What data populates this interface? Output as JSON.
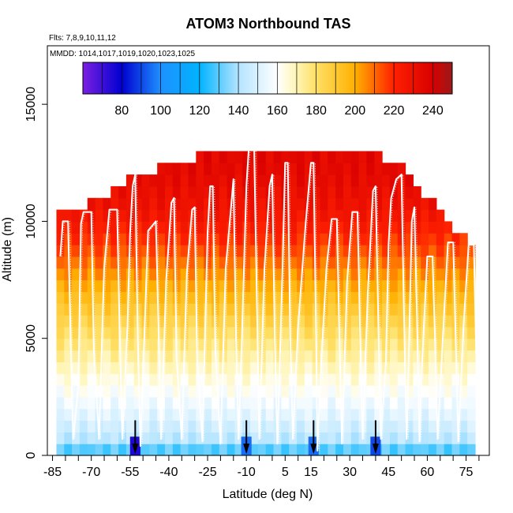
{
  "chart_data": {
    "type": "heatmap",
    "title": "ATOM3 Northbound TAS",
    "subtitle_flights": "Flts: 7,8,9,10,11,12",
    "subtitle_dates": "MMDD: 1014,1017,1019,1020,1023,1025",
    "xlabel": "Latitude (deg N)",
    "ylabel": "Altitude (m)",
    "xlim": [
      -87,
      84
    ],
    "ylim": [
      0,
      17500
    ],
    "x_ticks": [
      -85,
      -70,
      -55,
      -40,
      -25,
      -10,
      5,
      15,
      30,
      45,
      60,
      75
    ],
    "y_ticks": [
      0,
      5000,
      10000,
      15000
    ],
    "colorbar": {
      "range": [
        60,
        250
      ],
      "ticks": [
        80,
        100,
        120,
        140,
        160,
        180,
        200,
        220,
        240
      ],
      "stops": [
        {
          "v": 60,
          "c": "#7b1fe0"
        },
        {
          "v": 80,
          "c": "#0000d0"
        },
        {
          "v": 100,
          "c": "#1e90ff"
        },
        {
          "v": 120,
          "c": "#00b4ff"
        },
        {
          "v": 140,
          "c": "#b4e4ff"
        },
        {
          "v": 160,
          "c": "#ffffff"
        },
        {
          "v": 170,
          "c": "#fff5b4"
        },
        {
          "v": 180,
          "c": "#ffe066"
        },
        {
          "v": 200,
          "c": "#ffb000"
        },
        {
          "v": 220,
          "c": "#ff2000"
        },
        {
          "v": 240,
          "c": "#d80000"
        },
        {
          "v": 250,
          "c": "#9a1a1a"
        }
      ]
    },
    "lat_bins": [
      -82,
      -79,
      -76,
      -73,
      -70,
      -67,
      -64,
      -61,
      -58,
      -55,
      -52,
      -49,
      -46,
      -43,
      -40,
      -37,
      -34,
      -31,
      -28,
      -25,
      -22,
      -19,
      -16,
      -13,
      -10,
      -7,
      -4,
      -1,
      2,
      5,
      8,
      11,
      14,
      17,
      20,
      23,
      26,
      29,
      32,
      35,
      38,
      41,
      44,
      47,
      50,
      53,
      56,
      59,
      62,
      65,
      68,
      71,
      74,
      77
    ],
    "column_top_altitude_m": [
      10500,
      10500,
      10500,
      10500,
      11000,
      11000,
      11000,
      11500,
      11500,
      12000,
      12000,
      12000,
      12000,
      12500,
      12500,
      12500,
      12500,
      12500,
      13000,
      13000,
      13000,
      13000,
      13000,
      13000,
      13000,
      13000,
      13000,
      13000,
      13000,
      13000,
      13000,
      13000,
      13000,
      13000,
      13000,
      13000,
      13000,
      13000,
      13000,
      13000,
      13000,
      13000,
      12500,
      12500,
      12500,
      12000,
      11500,
      11000,
      11000,
      10500,
      10000,
      9500,
      9500,
      9000
    ],
    "tas_profile_by_altitude": [
      {
        "alt_m": 0,
        "tas": 120
      },
      {
        "alt_m": 500,
        "tas": 140
      },
      {
        "alt_m": 1500,
        "tas": 150
      },
      {
        "alt_m": 3000,
        "tas": 162
      },
      {
        "alt_m": 4500,
        "tas": 175
      },
      {
        "alt_m": 6000,
        "tas": 188
      },
      {
        "alt_m": 7500,
        "tas": 202
      },
      {
        "alt_m": 9000,
        "tas": 216
      },
      {
        "alt_m": 10500,
        "tas": 228
      },
      {
        "alt_m": 12000,
        "tas": 234
      },
      {
        "alt_m": 13500,
        "tas": 236
      }
    ],
    "low_speed_spots": [
      {
        "lat": -53,
        "alt_m": 300,
        "tas": 75
      },
      {
        "lat": -10,
        "alt_m": 300,
        "tas": 95
      },
      {
        "lat": 16,
        "alt_m": 300,
        "tas": 95
      },
      {
        "lat": 40,
        "alt_m": 300,
        "tas": 90
      }
    ],
    "flight_track": [
      [
        -82,
        8500
      ],
      [
        -81,
        10000
      ],
      [
        -79,
        10000
      ],
      [
        -78,
        5000
      ],
      [
        -77,
        700
      ],
      [
        -75,
        3000
      ],
      [
        -74,
        9900
      ],
      [
        -73,
        10400
      ],
      [
        -70,
        10400
      ],
      [
        -69,
        4500
      ],
      [
        -67,
        700
      ],
      [
        -65,
        8000
      ],
      [
        -63,
        10500
      ],
      [
        -60,
        10500
      ],
      [
        -59,
        5200
      ],
      [
        -58,
        700
      ],
      [
        -56,
        5500
      ],
      [
        -55,
        9500
      ],
      [
        -54,
        11500
      ],
      [
        -53,
        12000
      ],
      [
        -52,
        5000
      ],
      [
        -51,
        400
      ],
      [
        -50,
        3500
      ],
      [
        -48,
        9600
      ],
      [
        -45,
        10000
      ],
      [
        -44,
        5500
      ],
      [
        -43,
        700
      ],
      [
        -41,
        7500
      ],
      [
        -39,
        10800
      ],
      [
        -38,
        11000
      ],
      [
        -37,
        4200
      ],
      [
        -35,
        700
      ],
      [
        -33,
        7800
      ],
      [
        -31,
        10500
      ],
      [
        -30,
        10600
      ],
      [
        -29,
        4000
      ],
      [
        -27,
        600
      ],
      [
        -25,
        9500
      ],
      [
        -24,
        11500
      ],
      [
        -23,
        11500
      ],
      [
        -22,
        4500
      ],
      [
        -20,
        500
      ],
      [
        -18,
        8000
      ],
      [
        -16,
        10500
      ],
      [
        -15,
        11800
      ],
      [
        -14,
        5000
      ],
      [
        -13,
        700
      ],
      [
        -12,
        4000
      ],
      [
        -10,
        11500
      ],
      [
        -9,
        13200
      ],
      [
        -7,
        13200
      ],
      [
        -6,
        7000
      ],
      [
        -5,
        700
      ],
      [
        -3,
        8000
      ],
      [
        -1,
        11500
      ],
      [
        0,
        12000
      ],
      [
        1,
        5000
      ],
      [
        2,
        500
      ],
      [
        4,
        8000
      ],
      [
        5,
        12500
      ],
      [
        6,
        12500
      ],
      [
        7,
        5000
      ],
      [
        8,
        700
      ],
      [
        10,
        5500
      ],
      [
        13,
        10000
      ],
      [
        15,
        12500
      ],
      [
        16,
        12500
      ],
      [
        17,
        5000
      ],
      [
        17.5,
        200
      ],
      [
        19,
        4000
      ],
      [
        21,
        8000
      ],
      [
        23,
        10100
      ],
      [
        25,
        10100
      ],
      [
        26,
        5000
      ],
      [
        27,
        500
      ],
      [
        29,
        7500
      ],
      [
        31,
        10400
      ],
      [
        33,
        10400
      ],
      [
        34,
        5200
      ],
      [
        35,
        700
      ],
      [
        37,
        7000
      ],
      [
        39,
        11300
      ],
      [
        40,
        11500
      ],
      [
        41,
        6000
      ],
      [
        42,
        700
      ],
      [
        44,
        4000
      ],
      [
        45,
        9000
      ],
      [
        46,
        11000
      ],
      [
        48,
        11800
      ],
      [
        50,
        12000
      ],
      [
        51,
        6000
      ],
      [
        52,
        700
      ],
      [
        53,
        5000
      ],
      [
        54,
        10000
      ],
      [
        55,
        10600
      ],
      [
        56,
        6000
      ],
      [
        57,
        600
      ],
      [
        58,
        4000
      ],
      [
        60,
        8500
      ],
      [
        62,
        8500
      ],
      [
        63,
        5000
      ],
      [
        64,
        700
      ],
      [
        66,
        5000
      ],
      [
        68,
        9100
      ],
      [
        70,
        9100
      ],
      [
        71,
        5000
      ],
      [
        72,
        600
      ],
      [
        74,
        5500
      ],
      [
        76,
        9000
      ],
      [
        78,
        9000
      ],
      [
        79,
        4000
      ]
    ]
  }
}
